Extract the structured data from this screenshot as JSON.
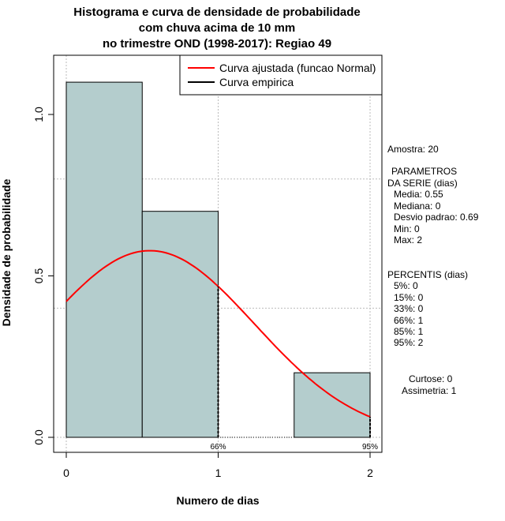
{
  "chart_data": {
    "type": "bar",
    "title": [
      "Histograma e curva de densidade de probabilidade",
      "com chuva acima de 10 mm",
      "no trimestre OND (1998-2017): Regiao 49"
    ],
    "xlabel": "Numero de dias",
    "ylabel": "Densidade de probabilidade",
    "xlim": [
      -0.08,
      2.08
    ],
    "ylim": [
      -0.05,
      1.18
    ],
    "xticks": [
      "0",
      "1",
      "2"
    ],
    "yticks": [
      "0.0",
      "0.5",
      "1.0"
    ],
    "bins": [
      {
        "from": 0,
        "to": 0.5,
        "density": 1.1
      },
      {
        "from": 0.5,
        "to": 1,
        "density": 0.7
      },
      {
        "from": 1,
        "to": 1.5,
        "density": 0
      },
      {
        "from": 1.5,
        "to": 2,
        "density": 0.2
      }
    ],
    "normal_fit": {
      "mean": 0.55,
      "sd": 0.69,
      "from": 0,
      "to": 2
    },
    "percentile_markers": [
      {
        "x": 1,
        "label": "66%"
      },
      {
        "x": 2,
        "label": "95%"
      }
    ],
    "legend": {
      "placement": "top-right",
      "entries": [
        {
          "label": "Curva ajustada (funcao Normal)",
          "color": "#ff0000"
        },
        {
          "label": "Curva empirica",
          "color": "#000000"
        }
      ]
    },
    "bar_color": "#b4cdcd",
    "grid": true
  },
  "stats": {
    "amostra": "Amostra: 20",
    "param_title1": "PARAMETROS",
    "param_title2": "DA SERIE (dias)",
    "params": [
      "Media: 0.55",
      "Mediana: 0",
      "Desvio padrao: 0.69",
      "Min: 0",
      "Max: 2"
    ],
    "perc_title": "PERCENTIS (dias)",
    "percentis": [
      "5%: 0",
      "15%: 0",
      "33%: 0",
      "66%: 1",
      "85%: 1",
      "95%: 2"
    ],
    "curtose": "Curtose: 0",
    "assimetria": "Assimetria: 1"
  }
}
